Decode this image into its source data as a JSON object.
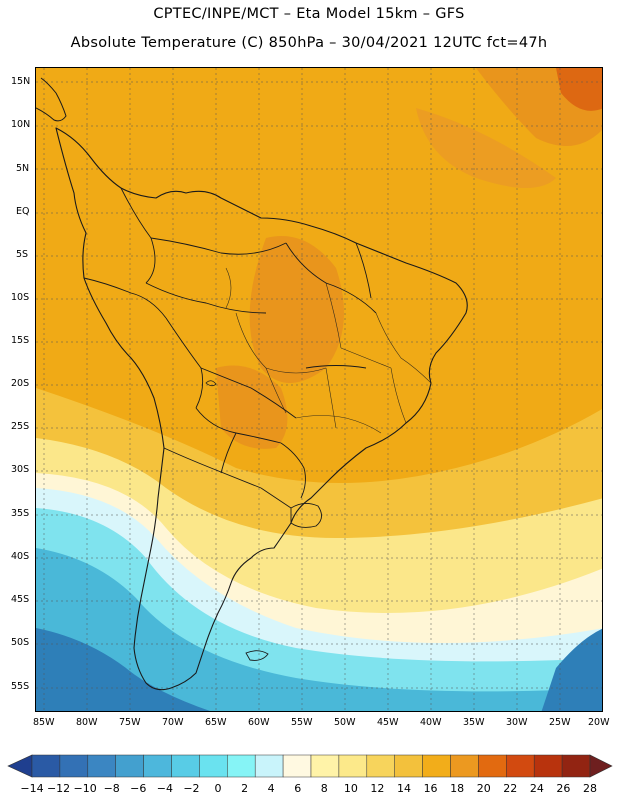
{
  "header": {
    "line1": "CPTEC/INPE/MCT –  Eta Model 15km – GFS",
    "line2": "Absolute Temperature (C) 850hPa – 30/04/2021 12UTC fct=47h"
  },
  "map": {
    "region": "South America",
    "lat_ticks": [
      "15N",
      "10N",
      "5N",
      "EQ",
      "5S",
      "10S",
      "15S",
      "20S",
      "25S",
      "30S",
      "35S",
      "40S",
      "45S",
      "50S",
      "55S"
    ],
    "lon_ticks": [
      "85W",
      "80W",
      "75W",
      "70W",
      "65W",
      "60W",
      "55W",
      "50W",
      "45W",
      "40W",
      "35W",
      "30W",
      "25W",
      "20W"
    ]
  },
  "colorbar": {
    "labels": [
      "-14",
      "-12",
      "-10",
      "-8",
      "-6",
      "-4",
      "-2",
      "0",
      "2",
      "4",
      "6",
      "8",
      "10",
      "12",
      "14",
      "16",
      "18",
      "20",
      "22",
      "24",
      "26",
      "28"
    ],
    "colors": [
      "#1f3f8f",
      "#2a5aa5",
      "#3371b5",
      "#3b86c2",
      "#43a0cf",
      "#4db7dc",
      "#58cce6",
      "#6ae2ef",
      "#86f4f6",
      "#c9f4fb",
      "#fff9e1",
      "#fff3a8",
      "#fce98a",
      "#f7d45c",
      "#f3c13c",
      "#f2ad1a",
      "#ec9920",
      "#e26a10",
      "#d24a10",
      "#b8330d",
      "#922412",
      "#6e1f1f"
    ]
  },
  "palette": {
    "ocean_deep": "#2e7fb8",
    "cold": "#4ab8d8",
    "cool": "#7fe3ee",
    "pale": "#d9f6fb",
    "cream": "#fff6d6",
    "yellow": "#fbe78a",
    "gold": "#f4c23c",
    "orange": "#f0aa16",
    "warm": "#e9951c",
    "hot": "#dd6812",
    "border": "#1a1a1a"
  }
}
